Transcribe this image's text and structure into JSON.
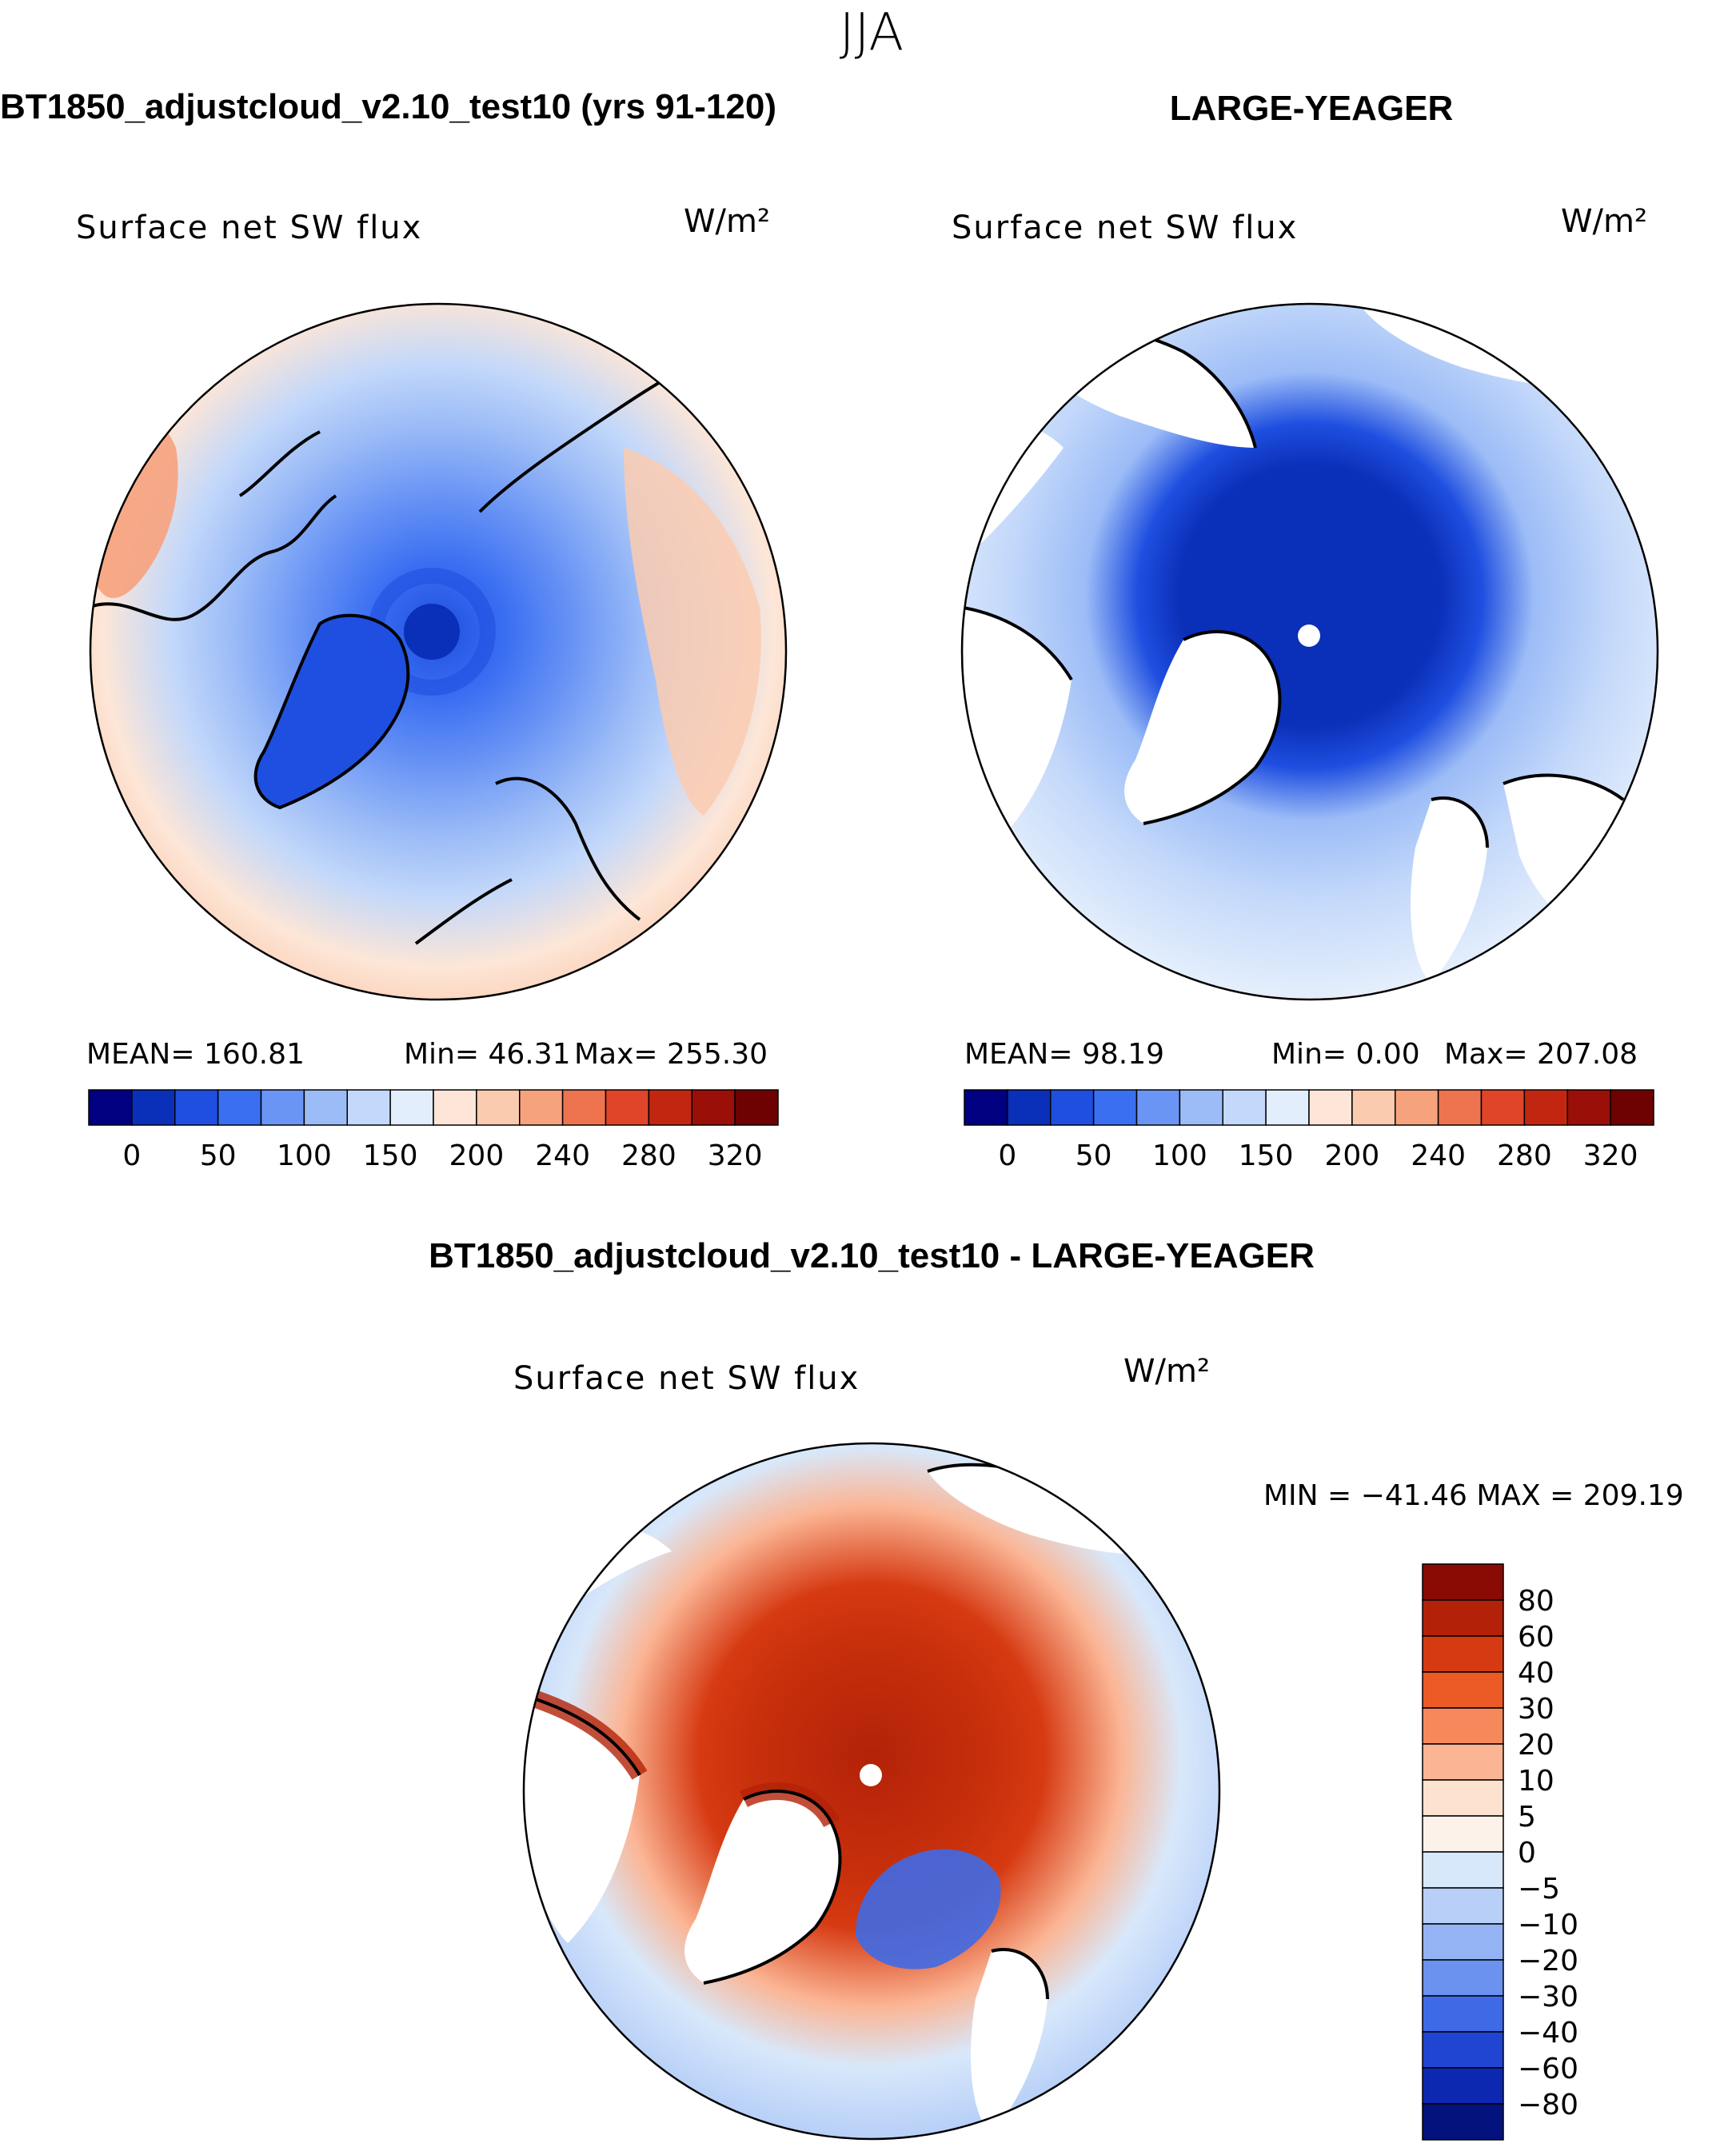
{
  "season": "JJA",
  "chart_data": [
    {
      "type": "heatmap",
      "panel": "top-left",
      "title": "BT1850_adjustcloud_v2.10_test10 (yrs 91-120)",
      "variable": "Surface net SW flux",
      "units": "W/m²",
      "projection": "polar stereographic (Arctic)",
      "stats_text": {
        "mean": "MEAN= 160.81",
        "min": "Min= 46.31",
        "max": "Max= 255.30"
      },
      "stats": {
        "mean": 160.81,
        "min": 46.31,
        "max": 255.3
      },
      "levels": [
        0,
        25,
        50,
        75,
        100,
        125,
        150,
        175,
        200,
        220,
        240,
        260,
        280,
        300,
        320
      ],
      "tick_labels": [
        "0",
        "50",
        "100",
        "150",
        "200",
        "240",
        "280",
        "320"
      ],
      "colors": [
        "#000080",
        "#0a2fb8",
        "#1f4fe0",
        "#3b6ff2",
        "#6a95f5",
        "#9cbcf7",
        "#c3d8fa",
        "#e3eefc",
        "#fde6d7",
        "#fbcbb0",
        "#f6a27d",
        "#ee7450",
        "#e0452a",
        "#c32610",
        "#9a0f08",
        "#6e0202"
      ]
    },
    {
      "type": "heatmap",
      "panel": "top-right",
      "title": "LARGE-YEAGER",
      "variable": "Surface net SW flux",
      "units": "W/m²",
      "projection": "polar stereographic (Arctic)",
      "stats_text": {
        "mean": "MEAN= 98.19",
        "min": "Min= 0.00",
        "max": "Max= 207.08"
      },
      "stats": {
        "mean": 98.19,
        "min": 0.0,
        "max": 207.08
      },
      "levels": [
        0,
        25,
        50,
        75,
        100,
        125,
        150,
        175,
        200,
        220,
        240,
        260,
        280,
        300,
        320
      ],
      "tick_labels": [
        "0",
        "50",
        "100",
        "150",
        "200",
        "240",
        "280",
        "320"
      ],
      "colors": [
        "#000080",
        "#0a2fb8",
        "#1f4fe0",
        "#3b6ff2",
        "#6a95f5",
        "#9cbcf7",
        "#c3d8fa",
        "#e3eefc",
        "#fde6d7",
        "#fbcbb0",
        "#f6a27d",
        "#ee7450",
        "#e0452a",
        "#c32610",
        "#9a0f08",
        "#6e0202"
      ]
    },
    {
      "type": "heatmap",
      "panel": "bottom",
      "title": "BT1850_adjustcloud_v2.10_test10 - LARGE-YEAGER",
      "variable": "Surface net SW flux",
      "units": "W/m²",
      "projection": "polar stereographic (Arctic)",
      "stats_text": "MIN = −41.46 MAX = 209.19",
      "stats": {
        "min": -41.46,
        "max": 209.19
      },
      "tick_labels": [
        "80",
        "60",
        "40",
        "30",
        "20",
        "10",
        "5",
        "0",
        "−5",
        "−10",
        "−20",
        "−30",
        "−40",
        "−60",
        "−80"
      ],
      "colors": [
        "#8a0a04",
        "#b32208",
        "#d63a12",
        "#ec5a26",
        "#f6895c",
        "#fbb594",
        "#fde2d0",
        "#fdf2ea",
        "#d8e8fb",
        "#b8d0f8",
        "#93b3f4",
        "#6a92ee",
        "#3f6ae6",
        "#1f45d2",
        "#0d28b0",
        "#04127e"
      ]
    }
  ]
}
